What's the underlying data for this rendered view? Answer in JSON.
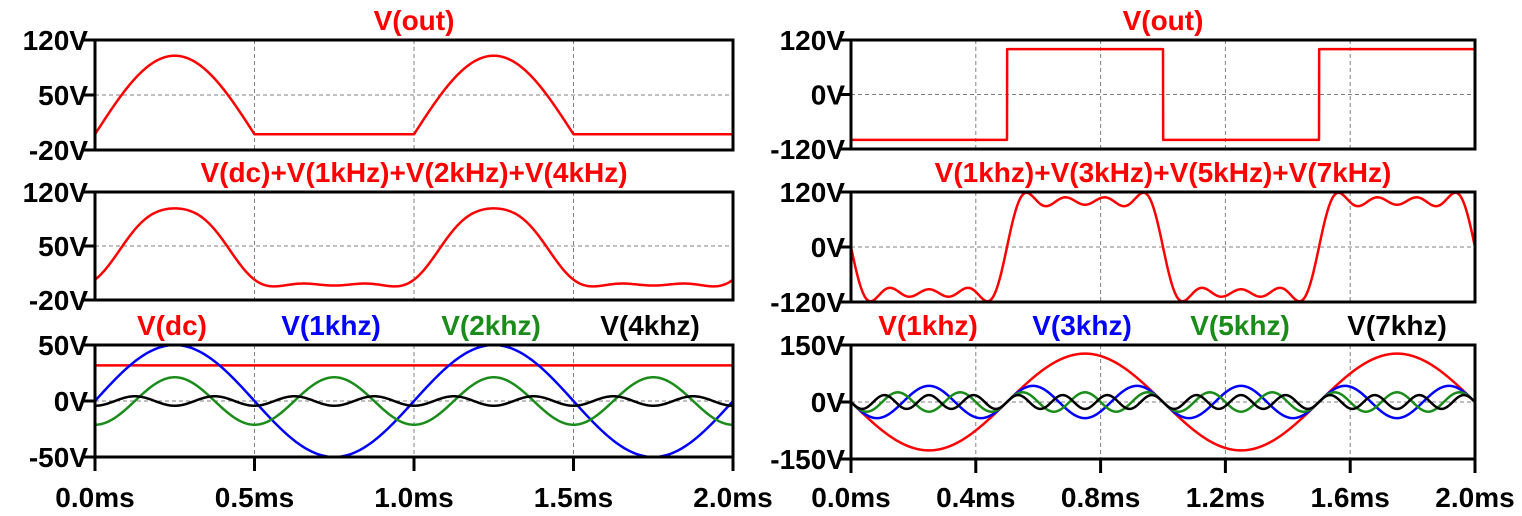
{
  "colors": {
    "red": "#ff0000",
    "blue": "#0000ff",
    "green": "#1a8c1a",
    "black": "#000000",
    "grid": "#808080"
  },
  "chart_data": [
    {
      "type": "line",
      "column": "left",
      "title": [
        {
          "text": "V(out)",
          "color": "#ff0000"
        }
      ],
      "xlim": [
        0,
        2
      ],
      "xunit": "ms",
      "xticks": [
        "0.0ms",
        "0.5ms",
        "1.0ms",
        "1.5ms",
        "2.0ms"
      ],
      "ylim": [
        -20,
        120
      ],
      "yticks": [
        {
          "v": 120,
          "label": "120V"
        },
        {
          "v": 50,
          "label": "50V"
        },
        {
          "v": -20,
          "label": "-20V"
        }
      ],
      "grid": true,
      "series": [
        {
          "name": "V(out)",
          "color": "#ff0000",
          "kind": "halfwave_rectified_sine",
          "amplitude": 100,
          "frequency_kHz": 1
        }
      ]
    },
    {
      "type": "line",
      "column": "left",
      "title": [
        {
          "text": "V(dc)+V(1kHz)+V(2kHz)+V(4kHz)",
          "color": "#ff0000"
        }
      ],
      "xlim": [
        0,
        2
      ],
      "xunit": "ms",
      "xticks": [
        "0.0ms",
        "0.5ms",
        "1.0ms",
        "1.5ms",
        "2.0ms"
      ],
      "ylim": [
        -20,
        120
      ],
      "yticks": [
        {
          "v": 120,
          "label": "120V"
        },
        {
          "v": 50,
          "label": "50V"
        },
        {
          "v": -20,
          "label": "-20V"
        }
      ],
      "grid": true,
      "series": [
        {
          "name": "V(dc)+V(1kHz)+V(2kHz)+V(4kHz)",
          "color": "#ff0000",
          "kind": "sum",
          "components": [
            {
              "kind": "dc",
              "offset": 31.8
            },
            {
              "kind": "sine",
              "amplitude": 50,
              "frequency_kHz": 1,
              "phase_deg": 0
            },
            {
              "kind": "sine",
              "amplitude": 21.2,
              "frequency_kHz": 2,
              "phase_deg": -90
            },
            {
              "kind": "sine",
              "amplitude": 4.24,
              "frequency_kHz": 4,
              "phase_deg": -90
            }
          ]
        }
      ]
    },
    {
      "type": "line",
      "column": "left",
      "title": [
        {
          "text": "V(dc)",
          "color": "#ff0000"
        },
        {
          "text": "V(1khz)",
          "color": "#0000ff"
        },
        {
          "text": "V(2khz)",
          "color": "#1a8c1a"
        },
        {
          "text": "V(4khz)",
          "color": "#000000"
        }
      ],
      "xlim": [
        0,
        2
      ],
      "xunit": "ms",
      "xticks": [
        "0.0ms",
        "0.5ms",
        "1.0ms",
        "1.5ms",
        "2.0ms"
      ],
      "ylim": [
        -50,
        50
      ],
      "yticks": [
        {
          "v": 50,
          "label": "50V"
        },
        {
          "v": 0,
          "label": "0V"
        },
        {
          "v": -50,
          "label": "-50V"
        }
      ],
      "grid": true,
      "series": [
        {
          "name": "V(dc)",
          "color": "#ff0000",
          "kind": "dc",
          "offset": 31.8
        },
        {
          "name": "V(1khz)",
          "color": "#0000ff",
          "kind": "sine",
          "amplitude": 50,
          "frequency_kHz": 1,
          "phase_deg": 0
        },
        {
          "name": "V(2khz)",
          "color": "#1a8c1a",
          "kind": "sine",
          "amplitude": 21.2,
          "frequency_kHz": 2,
          "phase_deg": -90
        },
        {
          "name": "V(4khz)",
          "color": "#000000",
          "kind": "sine",
          "amplitude": 4.24,
          "frequency_kHz": 4,
          "phase_deg": -90
        }
      ]
    },
    {
      "type": "line",
      "column": "right",
      "title": [
        {
          "text": "V(out)",
          "color": "#ff0000"
        }
      ],
      "xlim": [
        0,
        2
      ],
      "xunit": "ms",
      "xticks": [
        "0.0ms",
        "0.4ms",
        "0.8ms",
        "1.2ms",
        "1.6ms",
        "2.0ms"
      ],
      "ylim": [
        -120,
        120
      ],
      "yticks": [
        {
          "v": 120,
          "label": "120V"
        },
        {
          "v": 0,
          "label": "0V"
        },
        {
          "v": -120,
          "label": "-120V"
        }
      ],
      "grid": true,
      "series": [
        {
          "name": "V(out)",
          "color": "#ff0000",
          "kind": "square",
          "amplitude": 100,
          "frequency_kHz": 1,
          "starts": "low"
        }
      ]
    },
    {
      "type": "line",
      "column": "right",
      "title": [
        {
          "text": "V(1khz)+V(3kHz)+V(5kHz)+V(7kHz)",
          "color": "#ff0000"
        }
      ],
      "xlim": [
        0,
        2
      ],
      "xunit": "ms",
      "xticks": [
        "0.0ms",
        "0.4ms",
        "0.8ms",
        "1.2ms",
        "1.6ms",
        "2.0ms"
      ],
      "ylim": [
        -120,
        120
      ],
      "yticks": [
        {
          "v": 120,
          "label": "120V"
        },
        {
          "v": 0,
          "label": "0V"
        },
        {
          "v": -120,
          "label": "-120V"
        }
      ],
      "grid": true,
      "series": [
        {
          "name": "V(1khz)+V(3kHz)+V(5kHz)+V(7kHz)",
          "color": "#ff0000",
          "kind": "sum",
          "components": [
            {
              "kind": "sine",
              "amplitude": 127.3,
              "frequency_kHz": 1,
              "phase_deg": 180
            },
            {
              "kind": "sine",
              "amplitude": 42.4,
              "frequency_kHz": 3,
              "phase_deg": 180
            },
            {
              "kind": "sine",
              "amplitude": 25.5,
              "frequency_kHz": 5,
              "phase_deg": 180
            },
            {
              "kind": "sine",
              "amplitude": 18.2,
              "frequency_kHz": 7,
              "phase_deg": 180
            }
          ]
        }
      ]
    },
    {
      "type": "line",
      "column": "right",
      "title": [
        {
          "text": "V(1khz)",
          "color": "#ff0000"
        },
        {
          "text": "V(3khz)",
          "color": "#0000ff"
        },
        {
          "text": "V(5khz)",
          "color": "#1a8c1a"
        },
        {
          "text": "V(7khz)",
          "color": "#000000"
        }
      ],
      "xlim": [
        0,
        2
      ],
      "xunit": "ms",
      "xticks": [
        "0.0ms",
        "0.4ms",
        "0.8ms",
        "1.2ms",
        "1.6ms",
        "2.0ms"
      ],
      "ylim": [
        -150,
        150
      ],
      "yticks": [
        {
          "v": 150,
          "label": "150V"
        },
        {
          "v": 0,
          "label": "0V"
        },
        {
          "v": -150,
          "label": "-150V"
        }
      ],
      "grid": true,
      "series": [
        {
          "name": "V(1khz)",
          "color": "#ff0000",
          "kind": "sine",
          "amplitude": 127.3,
          "frequency_kHz": 1,
          "phase_deg": 180
        },
        {
          "name": "V(3khz)",
          "color": "#0000ff",
          "kind": "sine",
          "amplitude": 42.4,
          "frequency_kHz": 3,
          "phase_deg": 180
        },
        {
          "name": "V(5khz)",
          "color": "#1a8c1a",
          "kind": "sine",
          "amplitude": 25.5,
          "frequency_kHz": 5,
          "phase_deg": 180
        },
        {
          "name": "V(7khz)",
          "color": "#000000",
          "kind": "sine",
          "amplitude": 18.2,
          "frequency_kHz": 7,
          "phase_deg": 180
        }
      ]
    }
  ]
}
